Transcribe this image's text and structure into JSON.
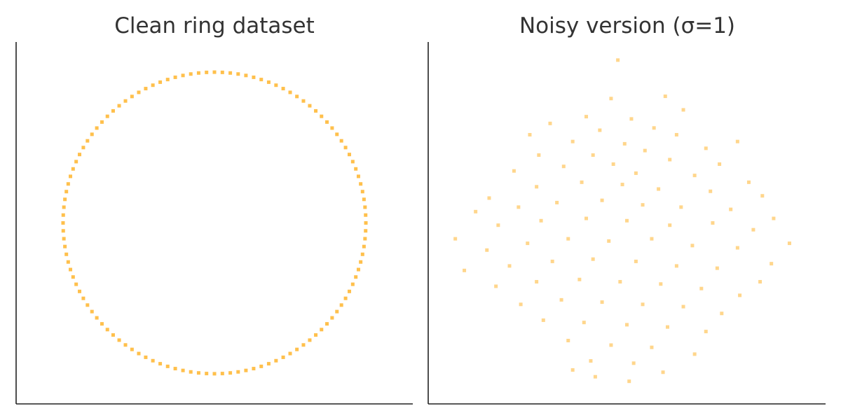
{
  "chart_data": [
    {
      "type": "scatter",
      "title": "Clean ring dataset",
      "xlabel": "",
      "ylabel": "",
      "xlim": [
        -1.31,
        1.31
      ],
      "ylim": [
        -1.2,
        1.2
      ],
      "grid": false,
      "ticks_visible": false,
      "marker_color": "#FFA500",
      "marker_alpha": 0.7,
      "points": [
        [
          1.0,
          0.0
        ],
        [
          0.9986,
          0.0523
        ],
        [
          0.9945,
          0.1045
        ],
        [
          0.9877,
          0.1564
        ],
        [
          0.9781,
          0.2079
        ],
        [
          0.9659,
          0.2588
        ],
        [
          0.9511,
          0.309
        ],
        [
          0.9336,
          0.3584
        ],
        [
          0.9135,
          0.4067
        ],
        [
          0.891,
          0.454
        ],
        [
          0.866,
          0.5
        ],
        [
          0.8387,
          0.5446
        ],
        [
          0.809,
          0.5878
        ],
        [
          0.7771,
          0.6293
        ],
        [
          0.7431,
          0.6691
        ],
        [
          0.7071,
          0.7071
        ],
        [
          0.6691,
          0.7431
        ],
        [
          0.6293,
          0.7771
        ],
        [
          0.5878,
          0.809
        ],
        [
          0.5446,
          0.8387
        ],
        [
          0.5,
          0.866
        ],
        [
          0.454,
          0.891
        ],
        [
          0.4067,
          0.9135
        ],
        [
          0.3584,
          0.9336
        ],
        [
          0.309,
          0.9511
        ],
        [
          0.2588,
          0.9659
        ],
        [
          0.2079,
          0.9781
        ],
        [
          0.1564,
          0.9877
        ],
        [
          0.1045,
          0.9945
        ],
        [
          0.0523,
          0.9986
        ],
        [
          0.0,
          1.0
        ],
        [
          -0.0523,
          0.9986
        ],
        [
          -0.1045,
          0.9945
        ],
        [
          -0.1564,
          0.9877
        ],
        [
          -0.2079,
          0.9781
        ],
        [
          -0.2588,
          0.9659
        ],
        [
          -0.309,
          0.9511
        ],
        [
          -0.3584,
          0.9336
        ],
        [
          -0.4067,
          0.9135
        ],
        [
          -0.454,
          0.891
        ],
        [
          -0.5,
          0.866
        ],
        [
          -0.5446,
          0.8387
        ],
        [
          -0.5878,
          0.809
        ],
        [
          -0.6293,
          0.7771
        ],
        [
          -0.6691,
          0.7431
        ],
        [
          -0.7071,
          0.7071
        ],
        [
          -0.7431,
          0.6691
        ],
        [
          -0.7771,
          0.6293
        ],
        [
          -0.809,
          0.5878
        ],
        [
          -0.8387,
          0.5446
        ],
        [
          -0.866,
          0.5
        ],
        [
          -0.891,
          0.454
        ],
        [
          -0.9135,
          0.4067
        ],
        [
          -0.9336,
          0.3584
        ],
        [
          -0.9511,
          0.309
        ],
        [
          -0.9659,
          0.2588
        ],
        [
          -0.9781,
          0.2079
        ],
        [
          -0.9877,
          0.1564
        ],
        [
          -0.9945,
          0.1045
        ],
        [
          -0.9986,
          0.0523
        ],
        [
          -1.0,
          0.0
        ],
        [
          -0.9986,
          -0.0523
        ],
        [
          -0.9945,
          -0.1045
        ],
        [
          -0.9877,
          -0.1564
        ],
        [
          -0.9781,
          -0.2079
        ],
        [
          -0.9659,
          -0.2588
        ],
        [
          -0.9511,
          -0.309
        ],
        [
          -0.9336,
          -0.3584
        ],
        [
          -0.9135,
          -0.4067
        ],
        [
          -0.891,
          -0.454
        ],
        [
          -0.866,
          -0.5
        ],
        [
          -0.8387,
          -0.5446
        ],
        [
          -0.809,
          -0.5878
        ],
        [
          -0.7771,
          -0.6293
        ],
        [
          -0.7431,
          -0.6691
        ],
        [
          -0.7071,
          -0.7071
        ],
        [
          -0.6691,
          -0.7431
        ],
        [
          -0.6293,
          -0.7771
        ],
        [
          -0.5878,
          -0.809
        ],
        [
          -0.5446,
          -0.8387
        ],
        [
          -0.5,
          -0.866
        ],
        [
          -0.454,
          -0.891
        ],
        [
          -0.4067,
          -0.9135
        ],
        [
          -0.3584,
          -0.9336
        ],
        [
          -0.309,
          -0.9511
        ],
        [
          -0.2588,
          -0.9659
        ],
        [
          -0.2079,
          -0.9781
        ],
        [
          -0.1564,
          -0.9877
        ],
        [
          -0.1045,
          -0.9945
        ],
        [
          -0.0523,
          -0.9986
        ],
        [
          -0.0,
          -1.0
        ],
        [
          0.0523,
          -0.9986
        ],
        [
          0.1045,
          -0.9945
        ],
        [
          0.1564,
          -0.9877
        ],
        [
          0.2079,
          -0.9781
        ],
        [
          0.2588,
          -0.9659
        ],
        [
          0.309,
          -0.9511
        ],
        [
          0.3584,
          -0.9336
        ],
        [
          0.4067,
          -0.9135
        ],
        [
          0.454,
          -0.891
        ],
        [
          0.5,
          -0.866
        ],
        [
          0.5446,
          -0.8387
        ],
        [
          0.5878,
          -0.809
        ],
        [
          0.6293,
          -0.7771
        ],
        [
          0.6691,
          -0.7431
        ],
        [
          0.7071,
          -0.7071
        ],
        [
          0.7431,
          -0.6691
        ],
        [
          0.7771,
          -0.6293
        ],
        [
          0.809,
          -0.5878
        ],
        [
          0.8387,
          -0.5446
        ],
        [
          0.866,
          -0.5
        ],
        [
          0.891,
          -0.454
        ],
        [
          0.9135,
          -0.4067
        ],
        [
          0.9336,
          -0.3584
        ],
        [
          0.9511,
          -0.309
        ],
        [
          0.9659,
          -0.2588
        ],
        [
          0.9781,
          -0.2079
        ],
        [
          0.9877,
          -0.1564
        ],
        [
          0.9945,
          -0.1045
        ],
        [
          0.9986,
          -0.0523
        ]
      ]
    },
    {
      "type": "scatter",
      "title": "Noisy version (σ=1)",
      "xlabel": "",
      "ylabel": "",
      "xlim": [
        -4.4,
        4.4
      ],
      "ylim": [
        -4.0,
        4.0
      ],
      "grid": false,
      "ticks_visible": false,
      "marker_color": "#FFA500",
      "marker_alpha": 0.45,
      "points": [
        [
          -0.2,
          3.6
        ],
        [
          0.85,
          2.8
        ],
        [
          -0.35,
          2.75
        ],
        [
          1.25,
          2.5
        ],
        [
          -0.9,
          2.35
        ],
        [
          -1.7,
          2.2
        ],
        [
          0.1,
          2.3
        ],
        [
          0.6,
          2.1
        ],
        [
          -0.6,
          2.05
        ],
        [
          2.45,
          1.8
        ],
        [
          1.1,
          1.95
        ],
        [
          -2.15,
          1.95
        ],
        [
          -1.2,
          1.8
        ],
        [
          -0.05,
          1.75
        ],
        [
          0.4,
          1.6
        ],
        [
          1.75,
          1.65
        ],
        [
          -1.95,
          1.5
        ],
        [
          -0.75,
          1.5
        ],
        [
          0.95,
          1.4
        ],
        [
          2.05,
          1.3
        ],
        [
          -2.5,
          1.15
        ],
        [
          -1.4,
          1.25
        ],
        [
          -0.3,
          1.3
        ],
        [
          0.2,
          1.1
        ],
        [
          1.5,
          1.05
        ],
        [
          2.7,
          0.9
        ],
        [
          -3.05,
          0.55
        ],
        [
          -2.0,
          0.8
        ],
        [
          -1.0,
          0.9
        ],
        [
          -0.1,
          0.85
        ],
        [
          0.7,
          0.75
        ],
        [
          1.85,
          0.7
        ],
        [
          3.0,
          0.6
        ],
        [
          -3.35,
          0.25
        ],
        [
          -2.4,
          0.35
        ],
        [
          -1.55,
          0.45
        ],
        [
          -0.55,
          0.5
        ],
        [
          0.35,
          0.4
        ],
        [
          1.2,
          0.35
        ],
        [
          2.3,
          0.3
        ],
        [
          3.25,
          0.1
        ],
        [
          -3.8,
          -0.35
        ],
        [
          -2.85,
          -0.05
        ],
        [
          -1.9,
          0.05
        ],
        [
          -0.9,
          0.1
        ],
        [
          0.0,
          0.05
        ],
        [
          0.95,
          -0.05
        ],
        [
          1.9,
          0.0
        ],
        [
          2.8,
          -0.15
        ],
        [
          3.6,
          -0.45
        ],
        [
          -3.1,
          -0.6
        ],
        [
          -2.2,
          -0.45
        ],
        [
          -1.3,
          -0.35
        ],
        [
          -0.4,
          -0.4
        ],
        [
          0.55,
          -0.35
        ],
        [
          1.45,
          -0.5
        ],
        [
          2.45,
          -0.55
        ],
        [
          3.2,
          -0.9
        ],
        [
          -3.6,
          -1.05
        ],
        [
          -2.6,
          -0.95
        ],
        [
          -1.65,
          -0.85
        ],
        [
          -0.75,
          -0.8
        ],
        [
          0.2,
          -0.85
        ],
        [
          1.1,
          -0.95
        ],
        [
          2.0,
          -1.0
        ],
        [
          2.95,
          -1.3
        ],
        [
          -2.9,
          -1.4
        ],
        [
          -2.0,
          -1.3
        ],
        [
          -1.05,
          -1.25
        ],
        [
          -0.15,
          -1.3
        ],
        [
          0.75,
          -1.35
        ],
        [
          1.65,
          -1.45
        ],
        [
          2.5,
          -1.6
        ],
        [
          -2.35,
          -1.8
        ],
        [
          -1.45,
          -1.7
        ],
        [
          -0.55,
          -1.75
        ],
        [
          0.35,
          -1.8
        ],
        [
          1.25,
          -1.85
        ],
        [
          2.1,
          -2.0
        ],
        [
          -1.85,
          -2.15
        ],
        [
          -0.95,
          -2.2
        ],
        [
          0.0,
          -2.25
        ],
        [
          0.9,
          -2.3
        ],
        [
          1.75,
          -2.4
        ],
        [
          -1.3,
          -2.6
        ],
        [
          -0.35,
          -2.7
        ],
        [
          0.55,
          -2.75
        ],
        [
          1.5,
          -2.9
        ],
        [
          -0.8,
          -3.05
        ],
        [
          0.15,
          -3.1
        ],
        [
          -1.2,
          -3.25
        ],
        [
          0.05,
          -3.5
        ],
        [
          -0.7,
          -3.4
        ],
        [
          0.8,
          -3.3
        ]
      ]
    }
  ]
}
